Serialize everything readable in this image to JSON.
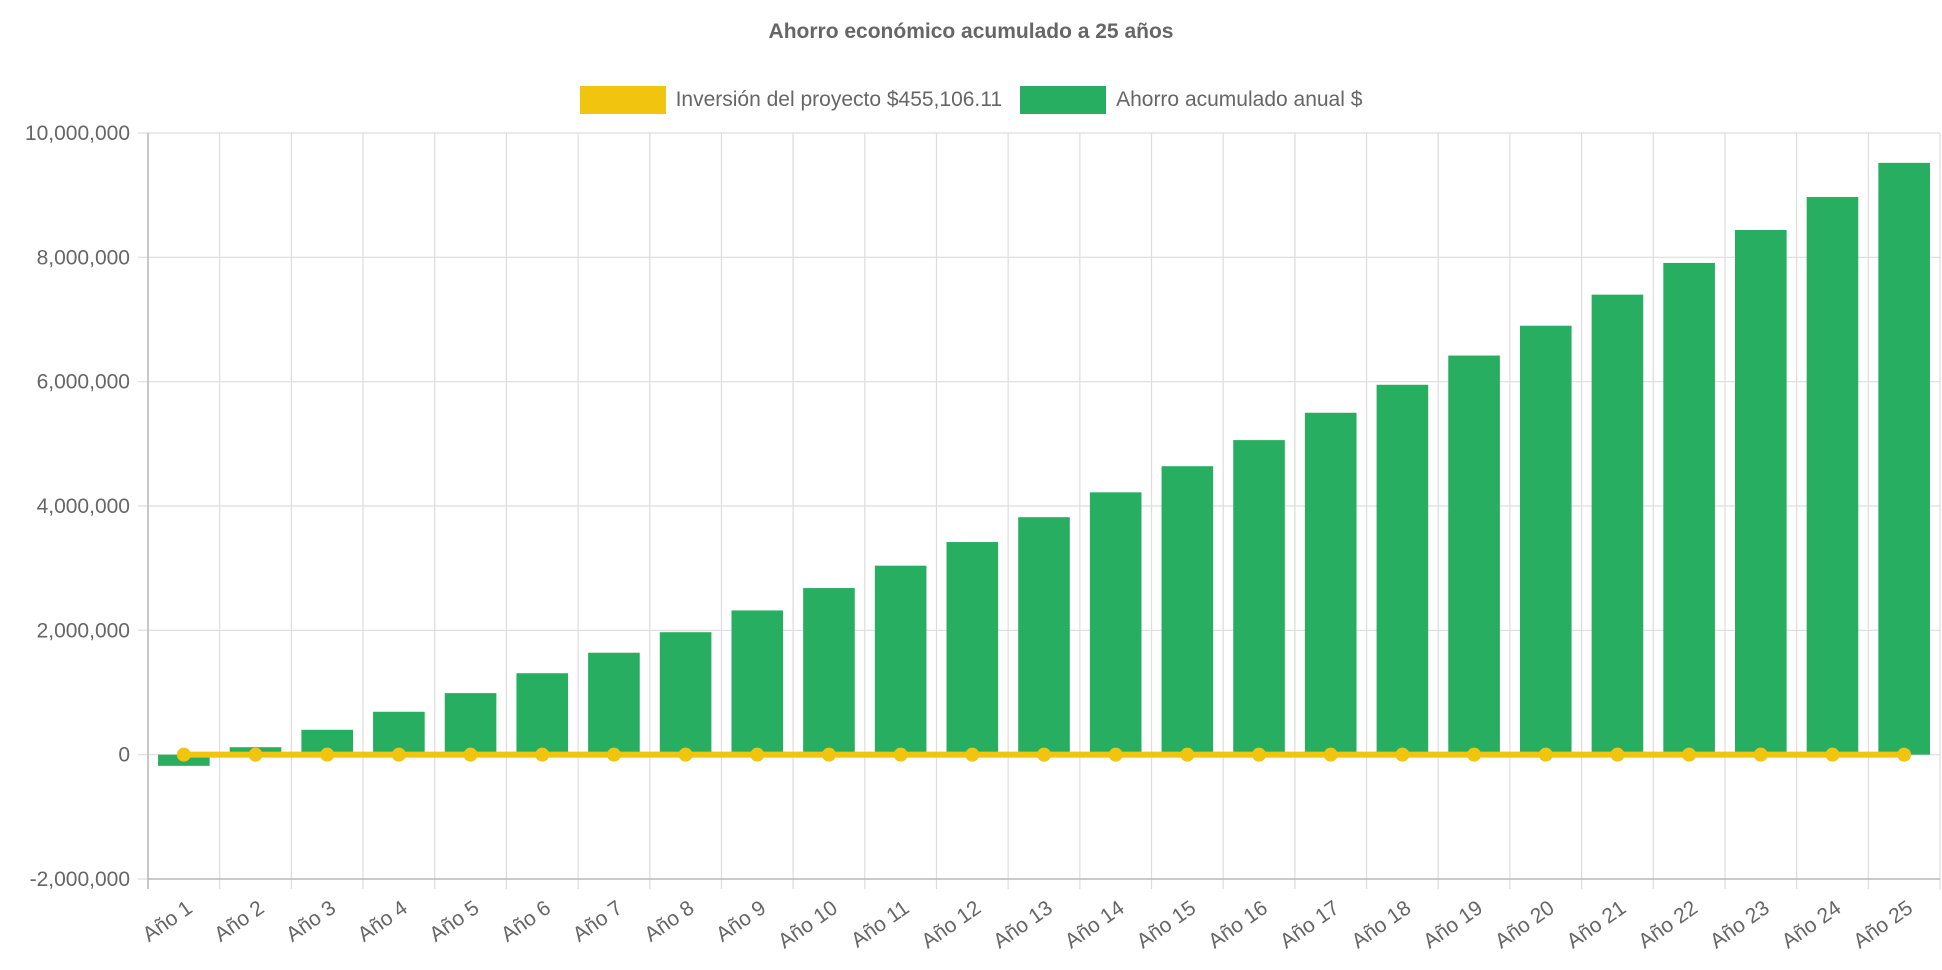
{
  "chart_data": {
    "type": "bar",
    "title": "Ahorro económico acumulado a 25 años",
    "categories": [
      "Año 1",
      "Año 2",
      "Año 3",
      "Año 4",
      "Año 5",
      "Año 6",
      "Año 7",
      "Año 8",
      "Año 9",
      "Año 10",
      "Año 11",
      "Año 12",
      "Año 13",
      "Año 14",
      "Año 15",
      "Año 16",
      "Año 17",
      "Año 18",
      "Año 19",
      "Año 20",
      "Año 21",
      "Año 22",
      "Año 23",
      "Año 24",
      "Año 25"
    ],
    "series": [
      {
        "name": "Inversión del proyecto $455,106.11",
        "type": "line",
        "color": "#f1c40f",
        "values": [
          0,
          0,
          0,
          0,
          0,
          0,
          0,
          0,
          0,
          0,
          0,
          0,
          0,
          0,
          0,
          0,
          0,
          0,
          0,
          0,
          0,
          0,
          0,
          0,
          0
        ]
      },
      {
        "name": "Ahorro acumulado anual $",
        "type": "bar",
        "color": "#27ae60",
        "values": [
          -180000,
          120000,
          400000,
          690000,
          990000,
          1310000,
          1640000,
          1970000,
          2320000,
          2680000,
          3040000,
          3420000,
          3820000,
          4220000,
          4640000,
          5060000,
          5500000,
          5950000,
          6420000,
          6900000,
          7400000,
          7910000,
          8440000,
          8970000,
          9520000
        ]
      }
    ],
    "ylim": [
      -2000000,
      10000000
    ],
    "yticks": [
      "10,000,000",
      "8,000,000",
      "6,000,000",
      "4,000,000",
      "2,000,000",
      "0",
      "-2,000,000"
    ],
    "ytick_values": [
      10000000,
      8000000,
      6000000,
      4000000,
      2000000,
      0,
      -2000000
    ],
    "grid": true,
    "legend": "top"
  }
}
